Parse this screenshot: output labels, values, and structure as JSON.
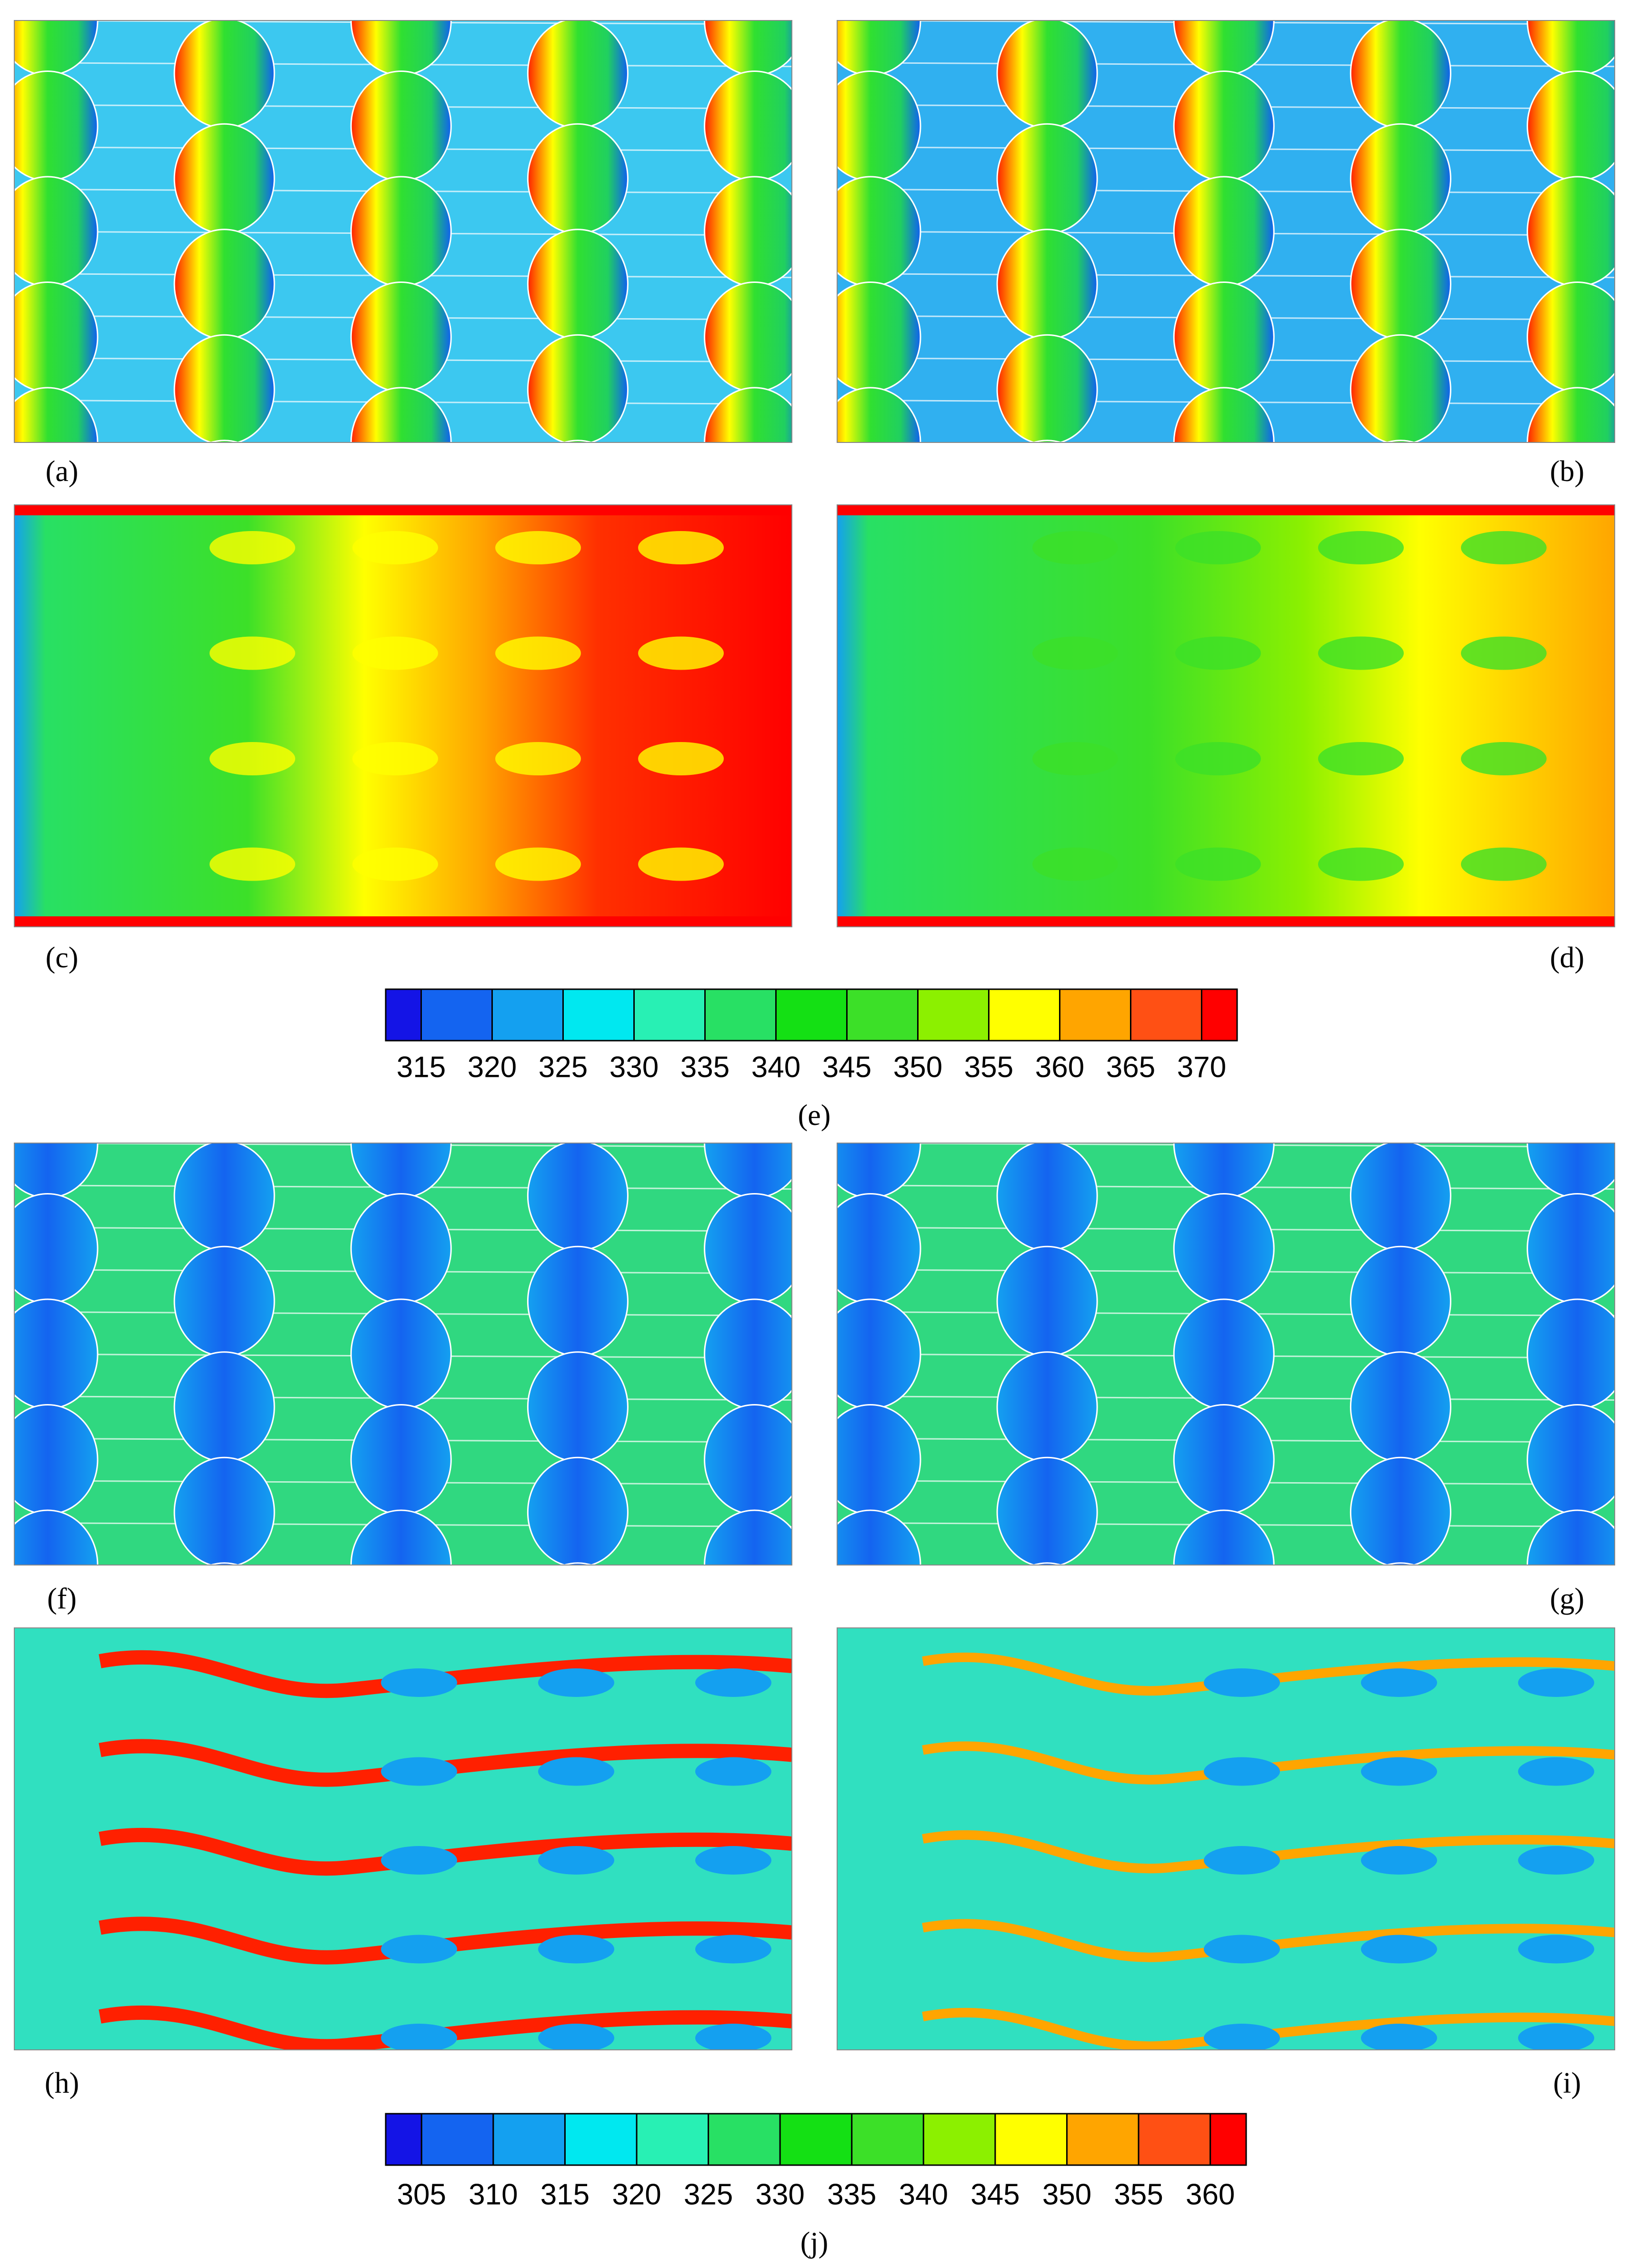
{
  "panels": [
    {
      "label": "(a)"
    },
    {
      "label": "(b)"
    },
    {
      "label": "(c)"
    },
    {
      "label": "(d)"
    },
    {
      "label": "(f)"
    },
    {
      "label": "(g)"
    },
    {
      "label": "(h)"
    },
    {
      "label": "(i)"
    }
  ],
  "colorbars": [
    {
      "label": "(e)",
      "ticks": [
        315,
        320,
        325,
        330,
        335,
        340,
        345,
        350,
        355,
        360,
        365,
        370
      ],
      "colors": [
        "#1414e6",
        "#1464f0",
        "#14a0f0",
        "#00e8f0",
        "#28f0b4",
        "#28e064",
        "#14e014",
        "#3ce028",
        "#8cf000",
        "#ffff00",
        "#ffa500",
        "#ff5014",
        "#ff0000"
      ]
    },
    {
      "label": "(j)",
      "ticks": [
        305,
        310,
        315,
        320,
        325,
        330,
        335,
        340,
        345,
        350,
        355,
        360
      ],
      "colors": [
        "#1414e6",
        "#1464f0",
        "#14a0f0",
        "#00e8f0",
        "#28f0b4",
        "#28e064",
        "#14e014",
        "#3ce028",
        "#8cf000",
        "#ffff00",
        "#ffa500",
        "#ff5014",
        "#ff0000"
      ]
    }
  ]
}
